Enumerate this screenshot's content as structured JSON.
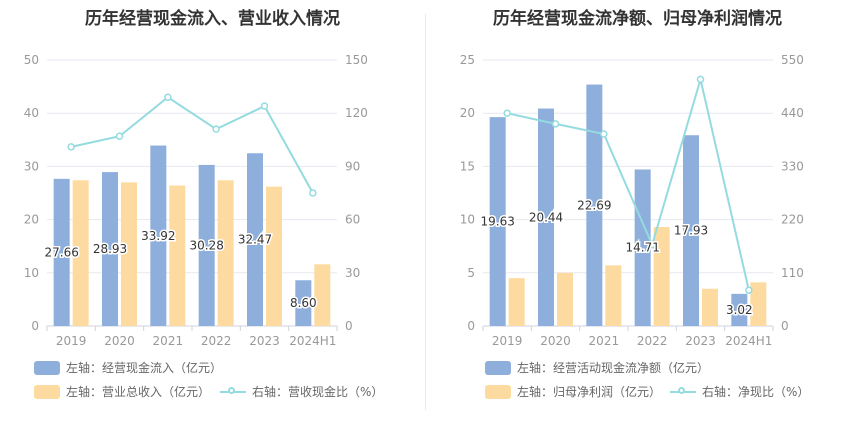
{
  "chart_data": [
    {
      "type": "bar",
      "title": "历年经营现金流入、营业收入情况",
      "categories": [
        "2019",
        "2020",
        "2021",
        "2022",
        "2023",
        "2024H1"
      ],
      "left_axis": {
        "ylim": [
          0,
          50
        ],
        "ticks": [
          "0",
          "10",
          "20",
          "30",
          "40",
          "50"
        ]
      },
      "right_axis": {
        "ylim": [
          0,
          150
        ],
        "ticks": [
          "0",
          "30",
          "60",
          "90",
          "120",
          "150"
        ]
      },
      "series": [
        {
          "name": "左轴：经营现金流入（亿元）",
          "kind": "bar",
          "axis": "left",
          "color": "#8eaedc",
          "values": [
            27.66,
            28.93,
            33.92,
            30.28,
            32.47,
            8.6
          ],
          "labels": [
            "27.66",
            "28.93",
            "33.92",
            "30.28",
            "32.47",
            "8.60"
          ]
        },
        {
          "name": "左轴：营业总收入（亿元）",
          "kind": "bar",
          "axis": "left",
          "color": "#fddba0",
          "values": [
            27.4,
            27.0,
            26.4,
            27.4,
            26.2,
            11.6
          ]
        },
        {
          "name": "右轴：营收现金比（%）",
          "kind": "line",
          "axis": "right",
          "color": "#94dbe0",
          "values": [
            101,
            107,
            129,
            111,
            124,
            75
          ]
        }
      ]
    },
    {
      "type": "bar",
      "title": "历年经营现金流净额、归母净利润情况",
      "categories": [
        "2019",
        "2020",
        "2021",
        "2022",
        "2023",
        "2024H1"
      ],
      "left_axis": {
        "ylim": [
          0,
          25
        ],
        "ticks": [
          "0",
          "5",
          "10",
          "15",
          "20",
          "25"
        ]
      },
      "right_axis": {
        "ylim": [
          0,
          550
        ],
        "ticks": [
          "0",
          "110",
          "220",
          "330",
          "440",
          "550"
        ]
      },
      "series": [
        {
          "name": "左轴：经营活动现金流净额（亿元）",
          "kind": "bar",
          "axis": "left",
          "color": "#8eaedc",
          "values": [
            19.63,
            20.44,
            22.69,
            14.71,
            17.93,
            3.02
          ],
          "labels": [
            "19.63",
            "20.44",
            "22.69",
            "14.71",
            "17.93",
            "3.02"
          ]
        },
        {
          "name": "左轴：归母净利润（亿元）",
          "kind": "bar",
          "axis": "left",
          "color": "#fddba0",
          "values": [
            4.5,
            5.0,
            5.7,
            9.3,
            3.5,
            4.1
          ]
        },
        {
          "name": "右轴：净现比（%）",
          "kind": "line",
          "axis": "right",
          "color": "#94dbe0",
          "values": [
            440,
            418,
            397,
            168,
            510,
            74
          ]
        }
      ]
    }
  ]
}
